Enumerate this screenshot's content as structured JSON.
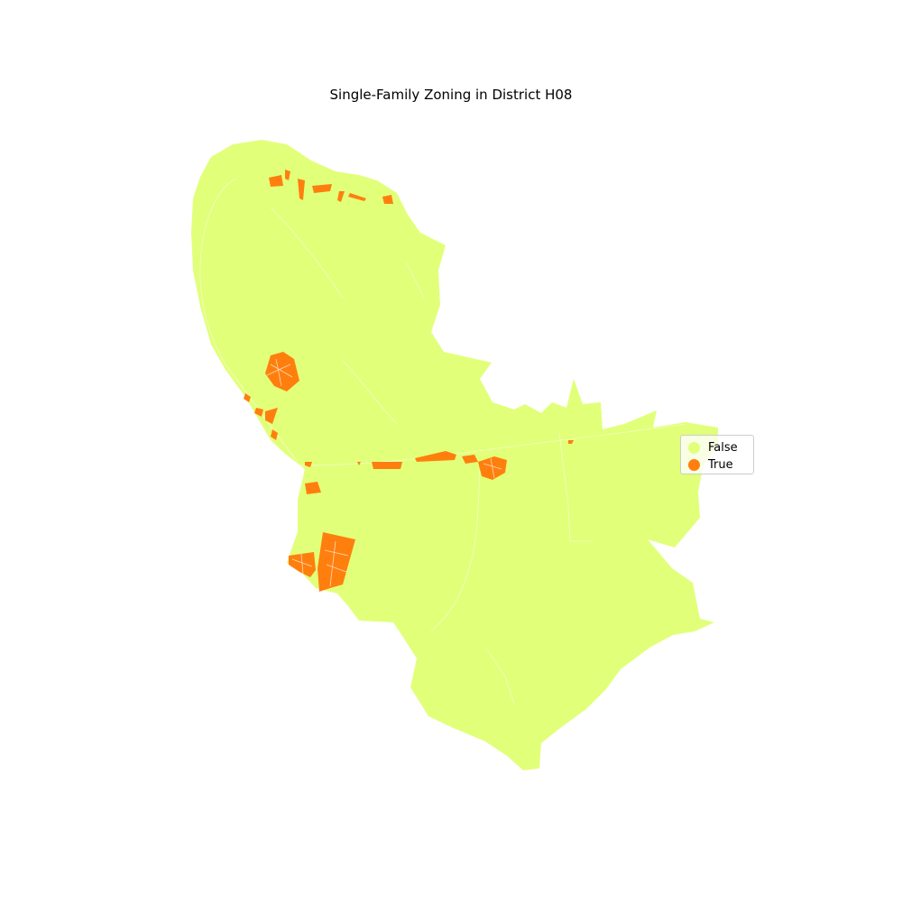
{
  "title": "Single-Family Zoning in District H08",
  "legend": {
    "items": [
      {
        "label": "False",
        "color": "#e2ff7a"
      },
      {
        "label": "True",
        "color": "#ff7f0e"
      }
    ]
  },
  "colors": {
    "false_fill": "#e2ff7a",
    "true_fill": "#ff7f0e",
    "boundary_lines": "#ffffff",
    "background": "#ffffff"
  }
}
